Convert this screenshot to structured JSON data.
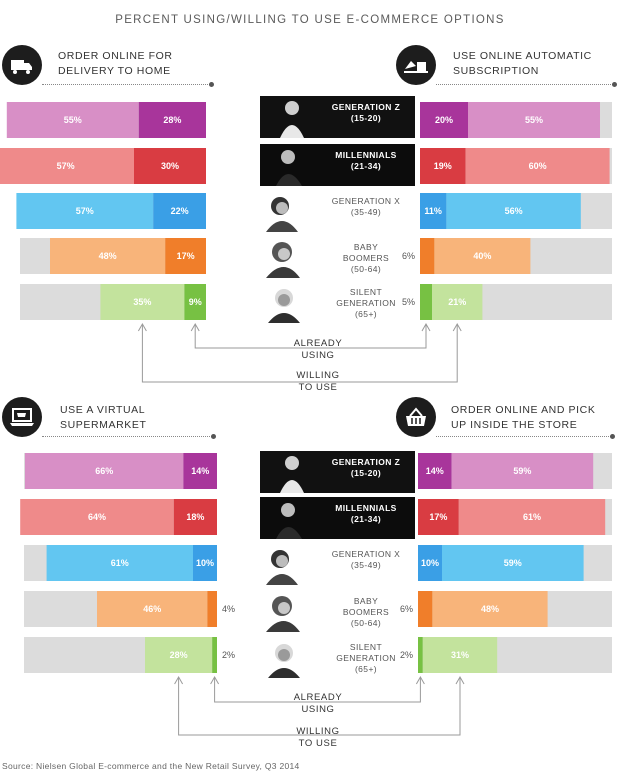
{
  "title": "PERCENT USING/WILLING TO USE E-COMMERCE OPTIONS",
  "source": "Source: Nielsen Global E-commerce and the New Retail Survey, Q3 2014",
  "legend": {
    "already": "ALREADY\nUSING",
    "willing": "WILLING\nTO USE"
  },
  "generations": [
    {
      "label": "GENERATION Z\n(15-20)",
      "style": "dark"
    },
    {
      "label": "MILLENNIALS\n(21-34)",
      "style": "dark"
    },
    {
      "label": "GENERATION X\n(35-49)",
      "style": "light"
    },
    {
      "label": "BABY\nBOOMERS\n(50-64)",
      "style": "light"
    },
    {
      "label": "SILENT\nGENERATION\n(65+)",
      "style": "light"
    }
  ],
  "colors": {
    "genz": [
      "#a8359b",
      "#d88fc6"
    ],
    "millennials": [
      "#d93c42",
      "#ef8a8a"
    ],
    "genx": [
      "#3a9fe6",
      "#62c6f1"
    ],
    "boomers": [
      "#f07e2a",
      "#f8b47a"
    ],
    "silent": [
      "#77c143",
      "#c3e39d"
    ],
    "track": "#dcdcdc"
  },
  "icons": [
    "truck-icon",
    "subscription-box-icon",
    "laptop-cart-icon",
    "basket-pickup-icon"
  ],
  "chart_data": [
    {
      "type": "bar",
      "title": "ORDER ONLINE FOR\nDELIVERY TO HOME",
      "categories": [
        "GENERATION Z (15-20)",
        "MILLENNIALS (21-34)",
        "GENERATION X (35-49)",
        "BABY BOOMERS (50-64)",
        "SILENT GENERATION (65+)"
      ],
      "series": [
        {
          "name": "ALREADY USING",
          "values": [
            28,
            30,
            22,
            17,
            9
          ]
        },
        {
          "name": "WILLING TO USE",
          "values": [
            55,
            57,
            57,
            48,
            35
          ]
        }
      ],
      "ylim": [
        0,
        100
      ]
    },
    {
      "type": "bar",
      "title": "USE ONLINE AUTOMATIC\nSUBSCRIPTION",
      "categories": [
        "GENERATION Z (15-20)",
        "MILLENNIALS (21-34)",
        "GENERATION X (35-49)",
        "BABY BOOMERS (50-64)",
        "SILENT GENERATION (65+)"
      ],
      "series": [
        {
          "name": "ALREADY USING",
          "values": [
            20,
            19,
            11,
            6,
            5
          ]
        },
        {
          "name": "WILLING TO USE",
          "values": [
            55,
            60,
            56,
            40,
            21
          ]
        }
      ],
      "ylim": [
        0,
        100
      ]
    },
    {
      "type": "bar",
      "title": "USE A VIRTUAL\nSUPERMARKET",
      "categories": [
        "GENERATION Z (15-20)",
        "MILLENNIALS (21-34)",
        "GENERATION X (35-49)",
        "BABY BOOMERS (50-64)",
        "SILENT GENERATION (65+)"
      ],
      "series": [
        {
          "name": "ALREADY USING",
          "values": [
            14,
            18,
            10,
            4,
            2
          ]
        },
        {
          "name": "WILLING TO USE",
          "values": [
            66,
            64,
            61,
            46,
            28
          ]
        }
      ],
      "ylim": [
        0,
        100
      ]
    },
    {
      "type": "bar",
      "title": "ORDER ONLINE AND PICK\nUP INSIDE THE STORE",
      "categories": [
        "GENERATION Z (15-20)",
        "MILLENNIALS (21-34)",
        "GENERATION X (35-49)",
        "BABY BOOMERS (50-64)",
        "SILENT GENERATION (65+)"
      ],
      "series": [
        {
          "name": "ALREADY USING",
          "values": [
            14,
            17,
            10,
            6,
            2
          ]
        },
        {
          "name": "WILLING TO USE",
          "values": [
            59,
            61,
            59,
            48,
            31
          ]
        }
      ],
      "ylim": [
        0,
        100
      ]
    }
  ]
}
